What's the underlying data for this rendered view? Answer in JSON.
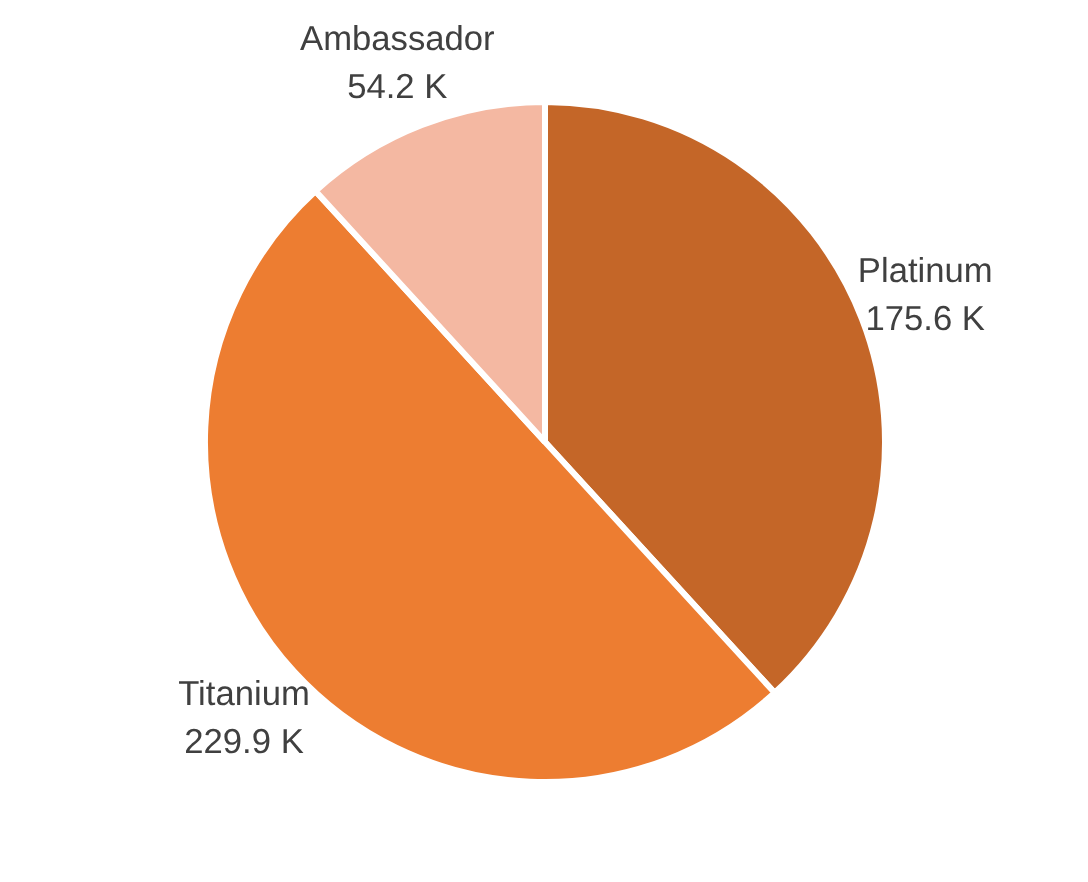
{
  "chart_data": {
    "type": "pie",
    "categories": [
      "Platinum",
      "Titanium",
      "Ambassador"
    ],
    "values": [
      175.6,
      229.9,
      54.2
    ],
    "value_labels": [
      "175.6 K",
      "229.9 K",
      "54.2 K"
    ],
    "colors": [
      "#c46628",
      "#ed7d31",
      "#f4b8a2"
    ]
  }
}
